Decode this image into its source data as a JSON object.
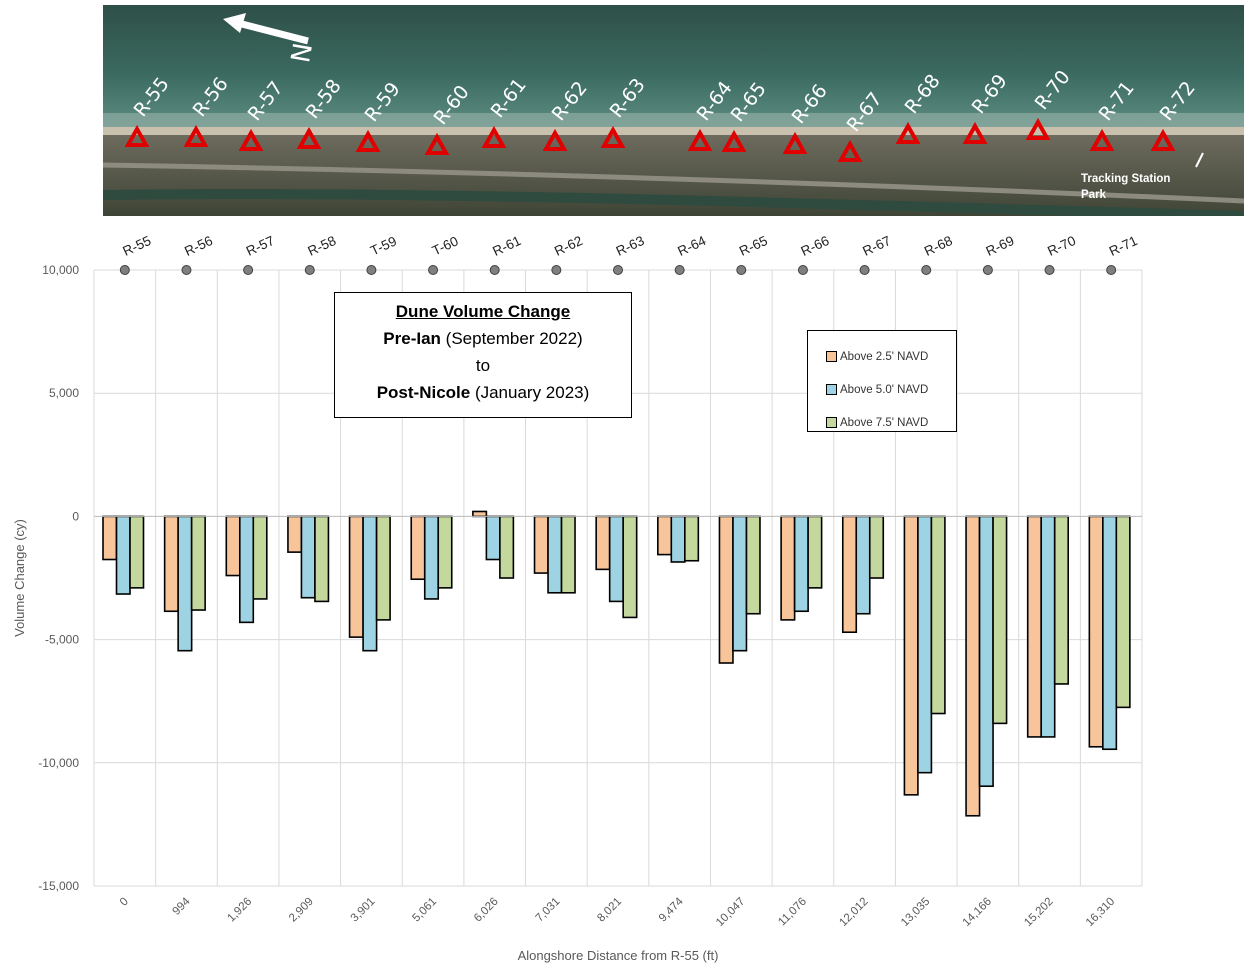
{
  "photo": {
    "north_label": "N",
    "park_label": "Tracking Station\nPark",
    "markers": [
      "R-55",
      "R-56",
      "R-57",
      "R-58",
      "R-59",
      "R-60",
      "R-61",
      "R-62",
      "R-63",
      "R-64",
      "R-65",
      "R-66",
      "R-67",
      "R-68",
      "R-69",
      "R-70",
      "R-71",
      "R-72"
    ]
  },
  "title_box": {
    "line1": "Dune Volume Change",
    "line2_bold": "Pre-Ian",
    "line2_rest": " (September 2022)",
    "line3": "to",
    "line4_bold": "Post-Nicole",
    "line4_rest": " (January 2023)"
  },
  "colors": {
    "above_2_5": "#F8C49A",
    "above_5_0": "#9DD3E2",
    "above_7_5": "#C4D89D",
    "grid": "#d9d9d9",
    "monument_dot": "#7f7f7f",
    "marker": "#e00000"
  },
  "chart_data": {
    "type": "bar",
    "monuments": [
      "R-55",
      "R-56",
      "R-57",
      "R-58",
      "T-59",
      "T-60",
      "R-61",
      "R-62",
      "R-63",
      "R-64",
      "R-65",
      "R-66",
      "R-67",
      "R-68",
      "R-69",
      "R-70",
      "R-71"
    ],
    "categories": [
      "0",
      "994",
      "1,926",
      "2,909",
      "3,901",
      "5,061",
      "6,026",
      "7,031",
      "8,021",
      "9,474",
      "10,047",
      "11,076",
      "12,012",
      "13,035",
      "14,166",
      "15,202",
      "16,310"
    ],
    "series": [
      {
        "name": "Above 2.5' NAVD",
        "values": [
          -1750,
          -3850,
          -2400,
          -1450,
          -4900,
          -2550,
          200,
          -2300,
          -2150,
          -1550,
          -5950,
          -4200,
          -4700,
          -11300,
          -12150,
          -8950,
          -9350
        ]
      },
      {
        "name": "Above 5.0' NAVD",
        "values": [
          -3150,
          -5450,
          -4300,
          -3300,
          -5450,
          -3350,
          -1750,
          -3100,
          -3450,
          -1850,
          -5450,
          -3850,
          -3950,
          -10400,
          -10950,
          -8950,
          -9450
        ]
      },
      {
        "name": "Above 7.5' NAVD",
        "values": [
          -2900,
          -3800,
          -3350,
          -3450,
          -4200,
          -2900,
          -2500,
          -3100,
          -4100,
          -1800,
          -3950,
          -2900,
          -2500,
          -8000,
          -8400,
          -6800,
          -7750
        ]
      }
    ],
    "xlabel": "Alongshore Distance from R-55 (ft)",
    "ylabel": "Volume Change (cy)",
    "ylim": [
      -15000,
      10000
    ],
    "yticks": [
      10000,
      5000,
      0,
      -5000,
      -10000,
      -15000
    ],
    "ytick_labels": [
      "10,000",
      "5,000",
      "0",
      "-5,000",
      "-10,000",
      "-15,000"
    ],
    "grid": true,
    "legend_position": "right"
  }
}
